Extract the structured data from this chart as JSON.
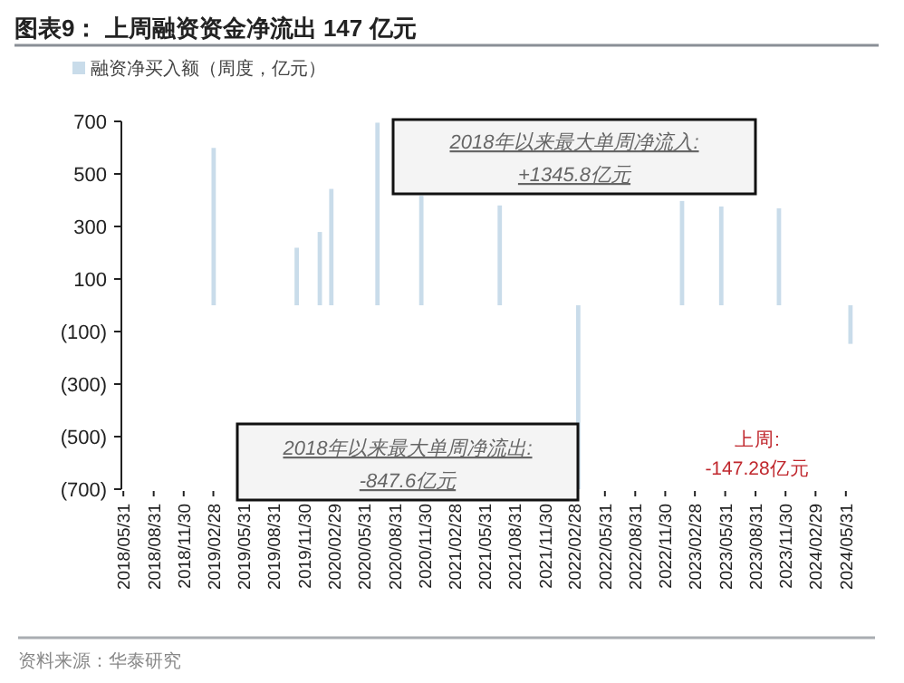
{
  "chart_data": {
    "type": "bar",
    "title": "图表9：  上周融资资金净流出 147 亿元",
    "series": [
      {
        "name": "融资净买入额（周度，亿元）",
        "color": "#c9dcea",
        "x": [
          "2019-03-01",
          "2019-11-08",
          "2020-01-17",
          "2020-02-21",
          "2020-07-10",
          "2020-11-20",
          "2021-07-16",
          "2022-03-11",
          "2023-01-20",
          "2023-05-19",
          "2023-11-10",
          "2024-06-14"
        ],
        "values": [
          599,
          219,
          279,
          443,
          695,
          417,
          380,
          -700,
          397,
          376,
          369,
          -147
        ]
      }
    ],
    "xlim": [
      "2018-05-25",
      "2024-06-28"
    ],
    "xticks": [
      {
        "value": "2018-05-31",
        "label": "2018/05/31"
      },
      {
        "value": "2018-08-31",
        "label": "2018/08/31"
      },
      {
        "value": "2018-11-30",
        "label": "2018/11/30"
      },
      {
        "value": "2019-02-28",
        "label": "2019/02/28"
      },
      {
        "value": "2019-05-31",
        "label": "2019/05/31"
      },
      {
        "value": "2019-08-31",
        "label": "2019/08/31"
      },
      {
        "value": "2019-11-30",
        "label": "2019/11/30"
      },
      {
        "value": "2020-02-29",
        "label": "2020/02/29"
      },
      {
        "value": "2020-05-31",
        "label": "2020/05/31"
      },
      {
        "value": "2020-08-31",
        "label": "2020/08/31"
      },
      {
        "value": "2020-11-30",
        "label": "2020/11/30"
      },
      {
        "value": "2021-02-28",
        "label": "2021/02/28"
      },
      {
        "value": "2021-05-31",
        "label": "2021/05/31"
      },
      {
        "value": "2021-08-31",
        "label": "2021/08/31"
      },
      {
        "value": "2021-11-30",
        "label": "2021/11/30"
      },
      {
        "value": "2022-02-28",
        "label": "2022/02/28"
      },
      {
        "value": "2022-05-31",
        "label": "2022/05/31"
      },
      {
        "value": "2022-08-31",
        "label": "2022/08/31"
      },
      {
        "value": "2022-11-30",
        "label": "2022/11/30"
      },
      {
        "value": "2023-02-28",
        "label": "2023/02/28"
      },
      {
        "value": "2023-05-31",
        "label": "2023/05/31"
      },
      {
        "value": "2023-08-31",
        "label": "2023/08/31"
      },
      {
        "value": "2023-11-30",
        "label": "2023/11/30"
      },
      {
        "value": "2024-02-29",
        "label": "2024/02/29"
      },
      {
        "value": "2024-05-31",
        "label": "2024/05/31"
      }
    ],
    "ylim": [
      -700,
      700
    ],
    "yticks": [
      {
        "value": -700,
        "label": "(700)"
      },
      {
        "value": -500,
        "label": "(500)"
      },
      {
        "value": -300,
        "label": "(300)"
      },
      {
        "value": -100,
        "label": "(100)"
      },
      100,
      300,
      500,
      700
    ],
    "legend": "top left",
    "annotations": [
      "2018年以来最大单周净流入:",
      "+1345.8亿元",
      "2018年以来最大单周净流出:",
      "-847.6亿元",
      "上周:",
      "-147.28亿元",
      "资料来源：华泰研究"
    ]
  }
}
